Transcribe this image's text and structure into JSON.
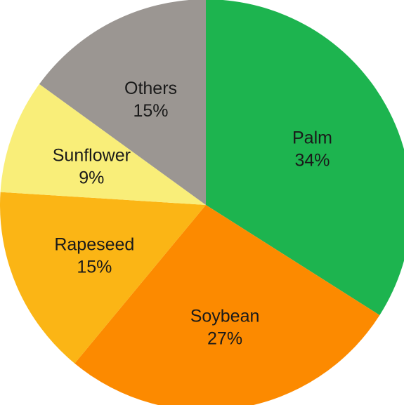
{
  "chart_data": {
    "type": "pie",
    "title": "",
    "start_angle_deg": 0,
    "direction": "clockwise",
    "slices": [
      {
        "label": "Palm",
        "value": 34,
        "value_label": "34%",
        "color": "#1db44f"
      },
      {
        "label": "Soybean",
        "value": 27,
        "value_label": "27%",
        "color": "#fc8a00"
      },
      {
        "label": "Rapeseed",
        "value": 15,
        "value_label": "15%",
        "color": "#fbb515"
      },
      {
        "label": "Sunflower",
        "value": 9,
        "value_label": "9%",
        "color": "#f9ee79"
      },
      {
        "label": "Others",
        "value": 15,
        "value_label": "15%",
        "color": "#9b9692"
      }
    ]
  }
}
